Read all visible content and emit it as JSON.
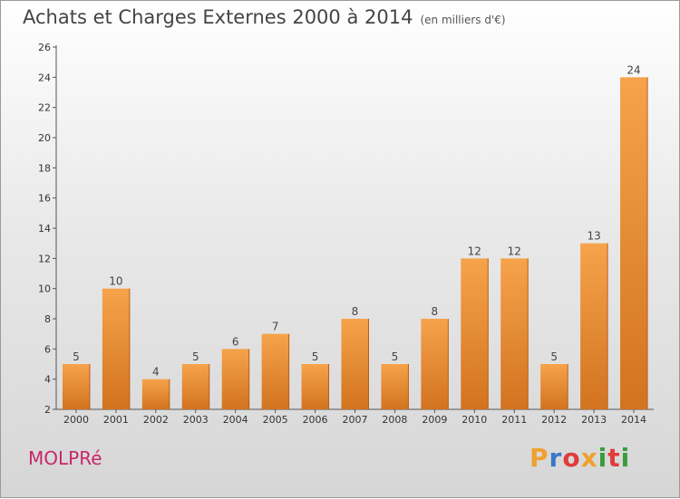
{
  "header": {
    "title": "Achats et Charges Externes 2000 à 2014",
    "subtitle": "(en milliers d'€)"
  },
  "footer": {
    "commune": "MOLPRé",
    "logo_text": "Proxiti",
    "logo_colors": [
      "#f0a030",
      "#3a78c8",
      "#e03c3c",
      "#f0a030",
      "#3a9c3a",
      "#e03c3c",
      "#3a9c3a"
    ]
  },
  "colors": {
    "bar_top": "#f6a34b",
    "bar_bottom": "#d2731f",
    "bar_side": "#b85e15"
  },
  "chart_data": {
    "type": "bar",
    "title": "Achats et Charges Externes 2000 à 2014",
    "subtitle": "(en milliers d'€)",
    "xlabel": "",
    "ylabel": "",
    "categories": [
      "2000",
      "2001",
      "2002",
      "2003",
      "2004",
      "2005",
      "2006",
      "2007",
      "2008",
      "2009",
      "2010",
      "2011",
      "2012",
      "2013",
      "2014"
    ],
    "values": [
      5,
      10,
      4,
      5,
      6,
      7,
      5,
      8,
      5,
      8,
      12,
      12,
      5,
      13,
      24
    ],
    "data_labels": [
      "5",
      "10",
      "4",
      "5",
      "6",
      "7",
      "5",
      "8",
      "5",
      "8",
      "12",
      "12",
      "5",
      "13",
      "24"
    ],
    "ylim": [
      2,
      26
    ],
    "yticks": [
      2,
      4,
      6,
      8,
      10,
      12,
      14,
      16,
      18,
      20,
      22,
      24,
      26
    ],
    "grid": false,
    "legend": "none"
  }
}
